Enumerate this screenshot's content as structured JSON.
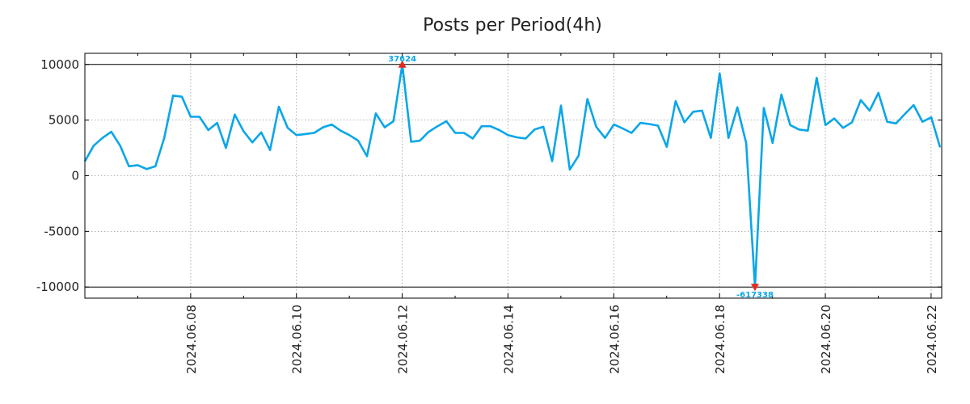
{
  "chart_data": {
    "type": "line",
    "title": "Posts per Period(4h)",
    "xlabel": "",
    "ylabel": "",
    "ylim": [
      -11000,
      11000
    ],
    "yticks": [
      10000,
      5000,
      0,
      -5000,
      -10000
    ],
    "ytick_labels": [
      "10000",
      "5000",
      "0",
      "-5000",
      "-10000"
    ],
    "xlim_days": [
      0,
      16.2
    ],
    "xticks_days": [
      2,
      4,
      6,
      8,
      10,
      12,
      14,
      16
    ],
    "xtick_labels": [
      "2024.06.08",
      "2024.06.10",
      "2024.06.12",
      "2024.06.14",
      "2024.06.16",
      "2024.06.18",
      "2024.06.20",
      "2024.06.22"
    ],
    "grid": true,
    "clip_lines": [
      10000,
      -10000
    ],
    "series": [
      {
        "name": "posts",
        "color": "#0aa6e8",
        "x_start_day": 0,
        "x_step_day": 0.1667,
        "values": [
          1300,
          2700,
          3400,
          3950,
          2700,
          850,
          950,
          600,
          850,
          3400,
          7200,
          7100,
          5300,
          5300,
          4100,
          4750,
          2500,
          5500,
          4000,
          3000,
          3900,
          2300,
          6200,
          4300,
          3650,
          3750,
          3850,
          4350,
          4600,
          4050,
          3650,
          3150,
          1750,
          5600,
          4350,
          4900,
          10000,
          3050,
          3150,
          3950,
          4450,
          4900,
          3850,
          3850,
          3350,
          4450,
          4450,
          4100,
          3650,
          3450,
          3350,
          4150,
          4400,
          1300,
          6300,
          550,
          1800,
          6900,
          4400,
          3400,
          4600,
          4250,
          3850,
          4750,
          4650,
          4500,
          2600,
          6700,
          4800,
          5750,
          5850,
          3400,
          9200,
          3400,
          6150,
          2950,
          -10000,
          6100,
          2950,
          7300,
          4550,
          4150,
          4050,
          8800,
          4550,
          5150,
          4300,
          4800,
          6800,
          5850,
          7450,
          4850,
          4700,
          5550,
          6350,
          4850,
          5250,
          2550
        ]
      }
    ],
    "annotations": [
      {
        "text": "37624",
        "x_index": 36,
        "y": 10000,
        "marker": "up-triangle",
        "marker_color": "#e8281c",
        "text_color": "#0aa6e8"
      },
      {
        "text": "-617338",
        "x_index": 76,
        "y": -10000,
        "marker": "down-triangle",
        "marker_color": "#e8281c",
        "text_color": "#0aa6e8"
      }
    ]
  }
}
